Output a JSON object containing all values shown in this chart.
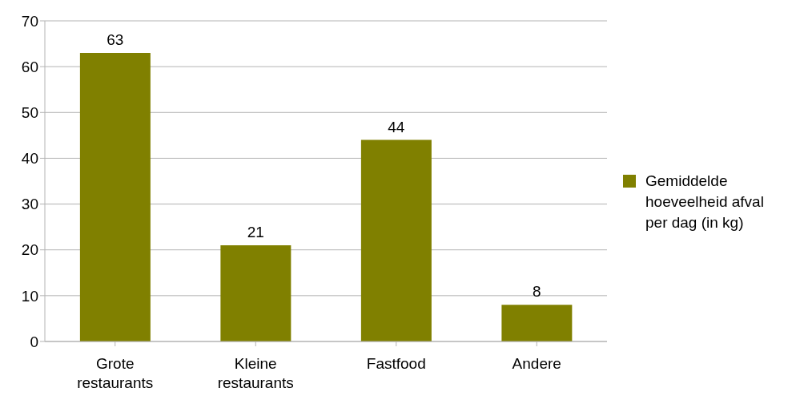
{
  "chart_data": {
    "type": "bar",
    "categories": [
      "Grote restaurants",
      "Kleine restaurants",
      "Fastfood",
      "Andere"
    ],
    "series": [
      {
        "name": "Gemiddelde hoeveelheid afval per dag (in kg)",
        "color": "#808000",
        "values": [
          63,
          21,
          44,
          8
        ]
      }
    ],
    "ylim": [
      0,
      70
    ],
    "yticks": [
      0,
      10,
      20,
      30,
      40,
      50,
      60,
      70
    ],
    "grid": "y",
    "legend": "right",
    "data_labels": true
  }
}
